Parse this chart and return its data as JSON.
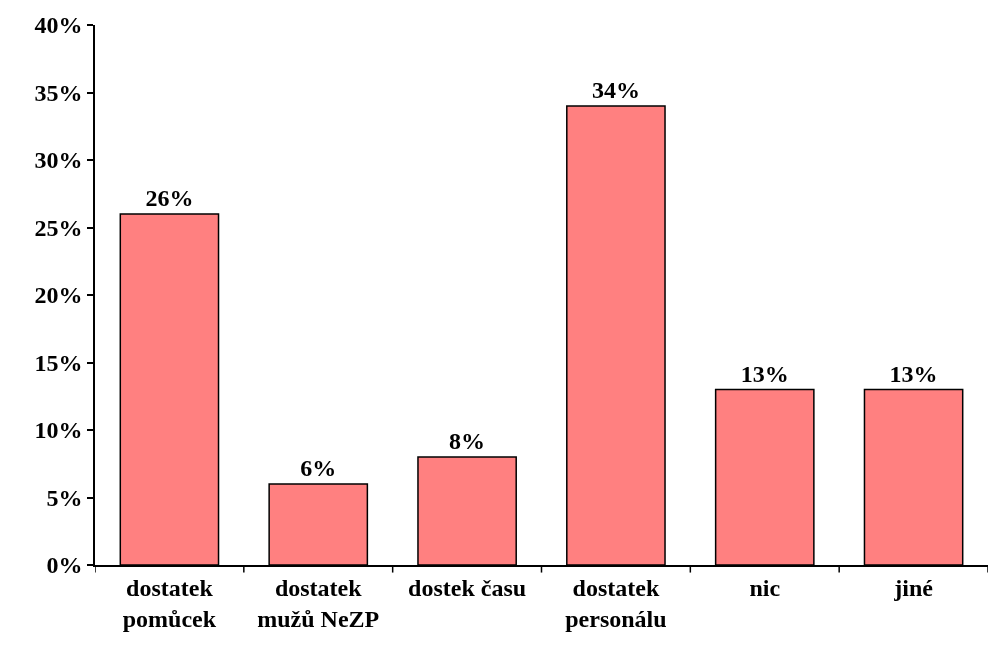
{
  "chart_data": {
    "type": "bar",
    "categories": [
      "dostatek\npomůcek",
      "dostatek\nmužů NeZP",
      "dostek času",
      "dostatek\npersonálu",
      "nic",
      "jiné"
    ],
    "values": [
      26,
      6,
      8,
      34,
      13,
      13
    ],
    "value_labels": [
      "26%",
      "6%",
      "8%",
      "34%",
      "13%",
      "13%"
    ],
    "color": "#ff8080",
    "ylim": [
      0,
      40
    ],
    "yticks": [
      {
        "value": 0,
        "label": "0%"
      },
      {
        "value": 5,
        "label": "5%"
      },
      {
        "value": 10,
        "label": "10%"
      },
      {
        "value": 15,
        "label": "15%"
      },
      {
        "value": 20,
        "label": "20%"
      },
      {
        "value": 25,
        "label": "25%"
      },
      {
        "value": 30,
        "label": "30%"
      },
      {
        "value": 35,
        "label": "35%"
      },
      {
        "value": 40,
        "label": "40%"
      }
    ],
    "legend": false
  }
}
